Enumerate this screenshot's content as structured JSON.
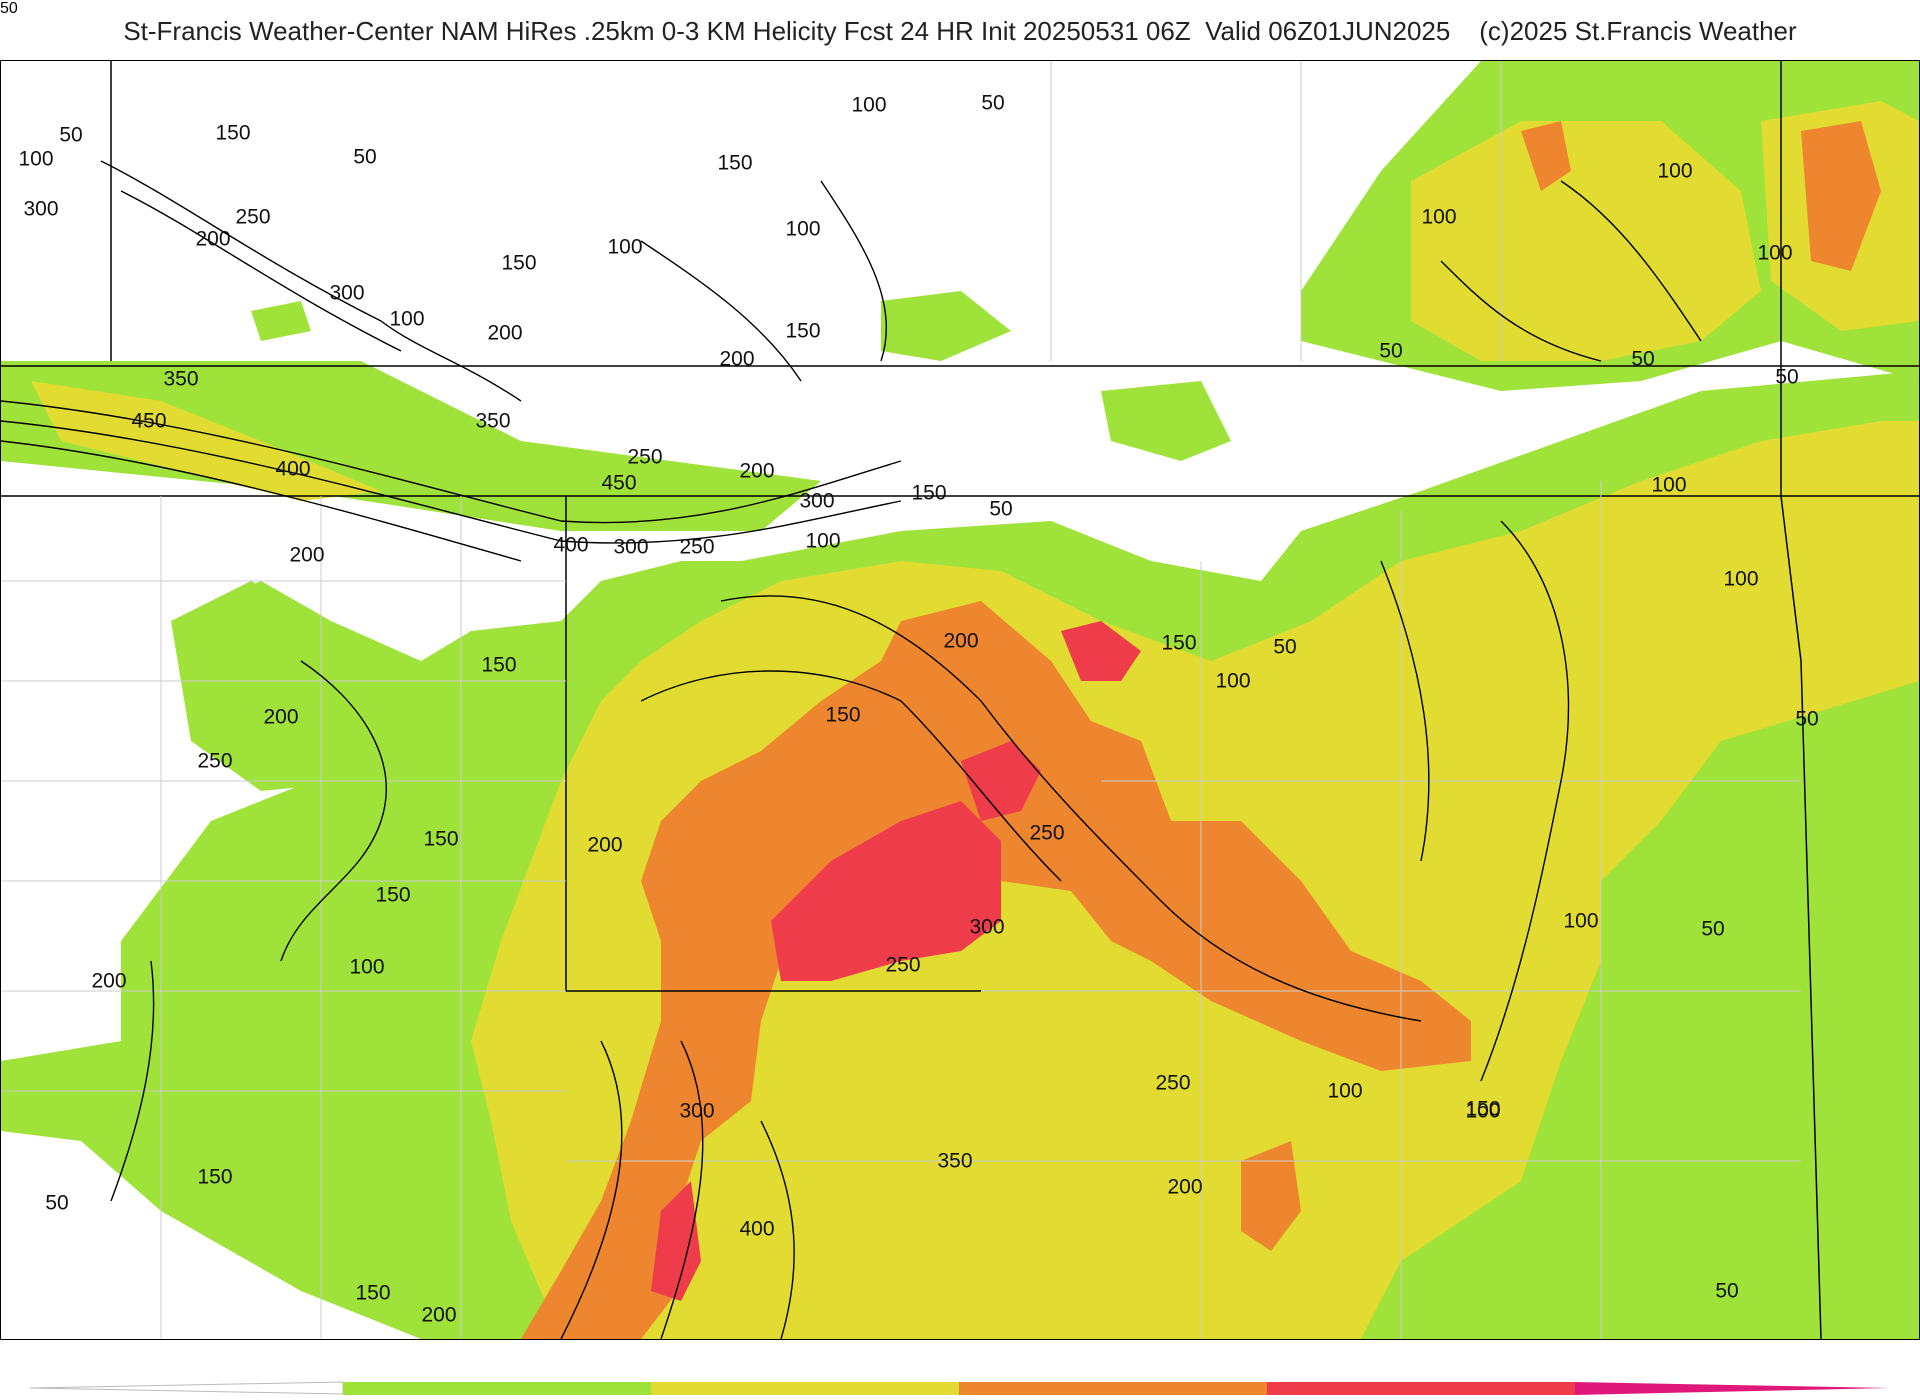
{
  "header": {
    "title": "St-Francis Weather-Center NAM HiRes .25km 0-3 KM Helicity Fcst 24 HR Init 20250531 06Z  Valid 06Z01JUN2025",
    "copyright": "(c)2025 St.Francis Weather"
  },
  "legend": {
    "tick_label": "50",
    "colors": [
      "#9ee23a",
      "#e2dc32",
      "#ee8630",
      "#ef3c4a",
      "#e0187a"
    ]
  },
  "contour_labels": [
    "50",
    "100",
    "150",
    "300",
    "200",
    "250",
    "50",
    "150",
    "300",
    "100",
    "200",
    "150",
    "100",
    "100",
    "150",
    "200",
    "100",
    "50",
    "350",
    "450",
    "400",
    "350",
    "250",
    "450",
    "200",
    "300",
    "400",
    "300",
    "250",
    "100",
    "150",
    "50",
    "200",
    "150",
    "200",
    "250",
    "150",
    "150",
    "100",
    "200",
    "150",
    "50",
    "150",
    "200",
    "200",
    "150",
    "100",
    "50",
    "150",
    "250",
    "300",
    "250",
    "250",
    "200",
    "300",
    "400",
    "350",
    "200",
    "100",
    "100",
    "100",
    "50",
    "100",
    "100",
    "50",
    "100",
    "50",
    "100",
    "50",
    "50",
    "100",
    "150",
    "50"
  ]
}
